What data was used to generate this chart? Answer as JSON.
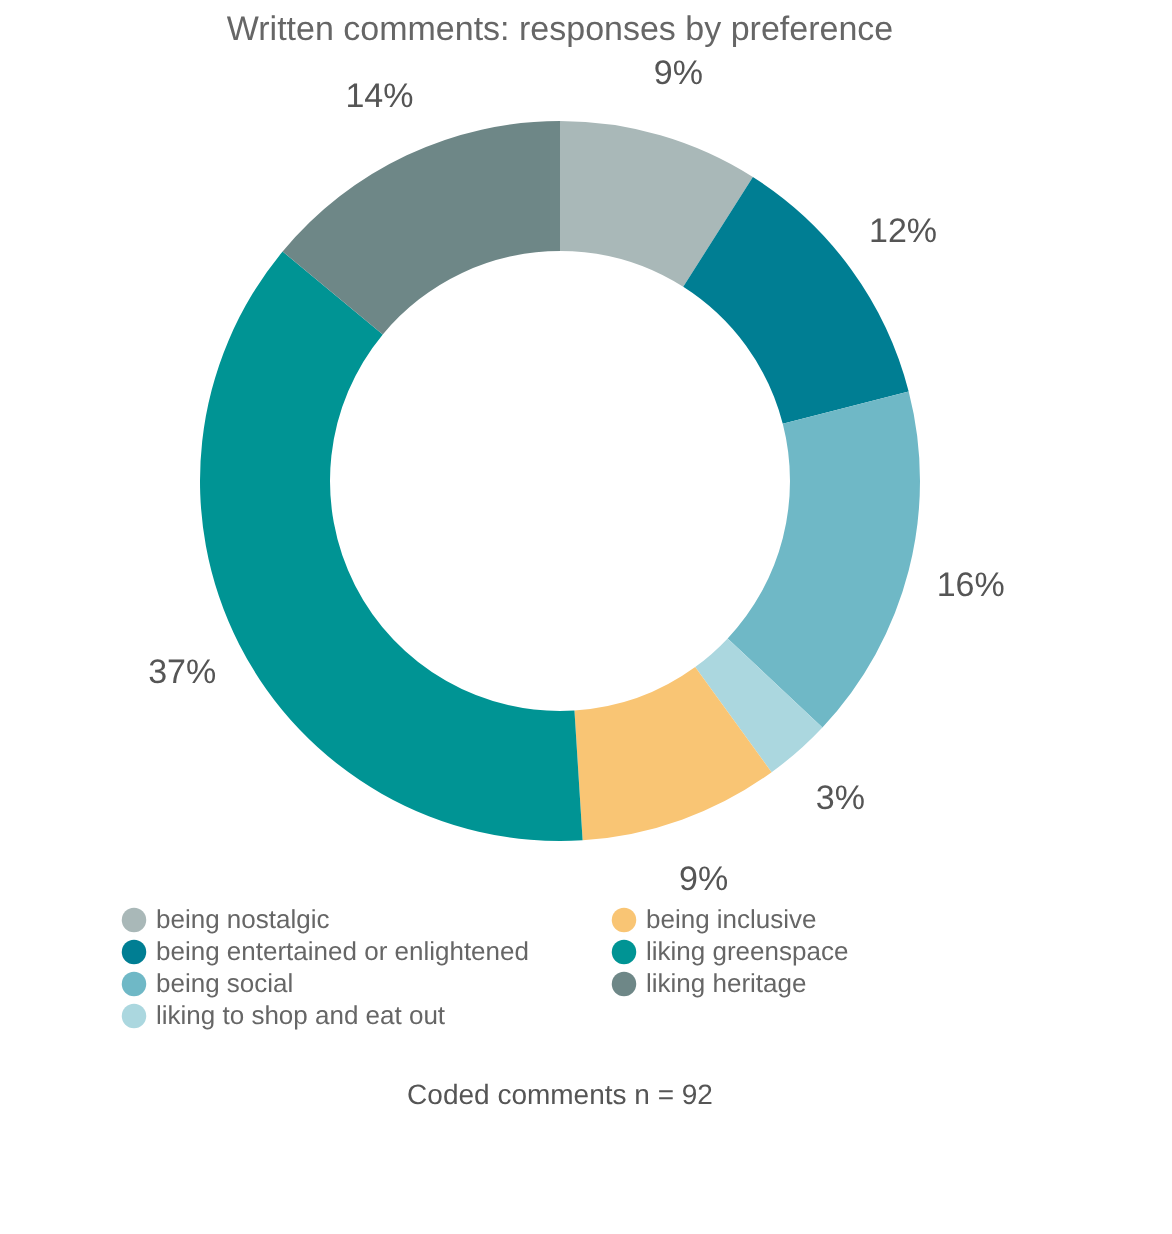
{
  "chart_data": {
    "type": "donut",
    "title": "Written comments: responses by preference",
    "categories": [
      "being nostalgic",
      "being entertained or enlightened",
      "being social",
      "liking to shop and eat out",
      "being inclusive",
      "liking greenspace",
      "liking heritage"
    ],
    "values": [
      9,
      12,
      16,
      3,
      9,
      37,
      14
    ],
    "colors": [
      "#a9b8b8",
      "#007e93",
      "#6fb8c6",
      "#abd7df",
      "#f9c574",
      "#009494",
      "#6e8787"
    ],
    "value_labels": [
      "9%",
      "12%",
      "16%",
      "3%",
      "9%",
      "37%",
      "14%"
    ],
    "legend": "bottom",
    "annotations": [
      "Coded comments  n = 92"
    ]
  }
}
